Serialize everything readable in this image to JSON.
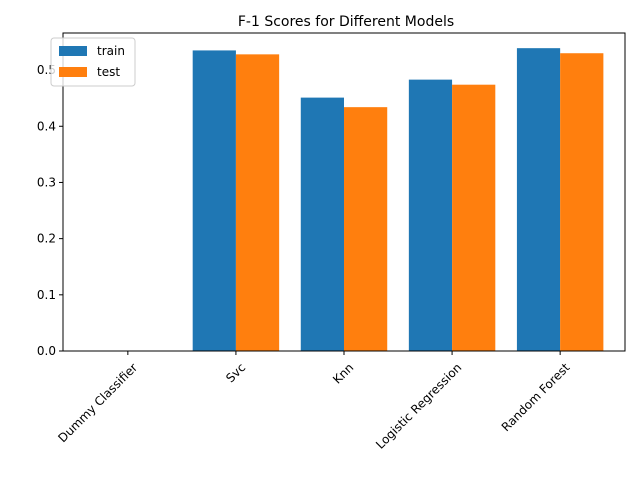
{
  "chart_data": {
    "type": "bar",
    "title": "F-1 Scores for Different Models",
    "xlabel": "",
    "ylabel": "",
    "categories": [
      "Dummy Classifier",
      "Svc",
      "Knn",
      "Logistic Regression",
      "Random Forest"
    ],
    "series": [
      {
        "name": "train",
        "color": "#1f77b4",
        "values": [
          0.0,
          0.535,
          0.451,
          0.483,
          0.539
        ]
      },
      {
        "name": "test",
        "color": "#ff7f0e",
        "values": [
          0.0,
          0.528,
          0.434,
          0.474,
          0.53
        ]
      }
    ],
    "yticks": [
      "0.0",
      "0.1",
      "0.2",
      "0.3",
      "0.4",
      "0.5"
    ],
    "ylim": [
      0,
      0.566
    ],
    "grid": false,
    "legend": "top-left",
    "xtick_rotation": 45
  }
}
